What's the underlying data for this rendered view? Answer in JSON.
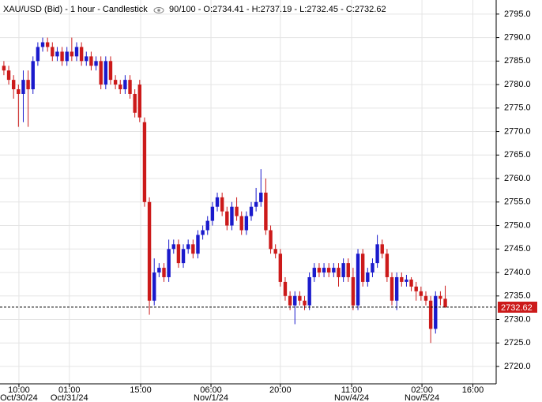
{
  "chart_data": {
    "type": "candlestick",
    "title": "XAU/USD (Bid) - 1 hour - Candlestick",
    "info": "90/100 - O:2734.41 - H:2737.19 - L:2732.45 - C:2732.62",
    "up_color": "#1a1acc",
    "down_color": "#cc1a1a",
    "grid": true,
    "xlim": [
      -0.8,
      101.5
    ],
    "xticks": [
      {
        "value": 3.1,
        "label": "10:00"
      },
      {
        "value": 13.5,
        "label": "01:00"
      },
      {
        "value": 28.2,
        "label": "15:00"
      },
      {
        "value": 42.7,
        "label": "06:00"
      },
      {
        "value": 57,
        "label": "20:00"
      },
      {
        "value": 71.7,
        "label": "11:00"
      },
      {
        "value": 86.2,
        "label": "02:00"
      },
      {
        "value": 96.7,
        "label": "16:00"
      }
    ],
    "xdates": [
      {
        "value": 3.1,
        "label": "Oct/30/24"
      },
      {
        "value": 13.5,
        "label": "Oct/31/24"
      },
      {
        "value": 42.7,
        "label": "Nov/1/24"
      },
      {
        "value": 71.7,
        "label": "Nov/4/24"
      },
      {
        "value": 86.2,
        "label": "Nov/5/24"
      }
    ],
    "ylim": [
      2716.3,
      2798
    ],
    "yticks": [
      {
        "value": 2720,
        "label": "2720.0"
      },
      {
        "value": 2725,
        "label": "2725.0"
      },
      {
        "value": 2730,
        "label": "2730.0"
      },
      {
        "value": 2735,
        "label": "2735.0"
      },
      {
        "value": 2740,
        "label": "2740.0"
      },
      {
        "value": 2745,
        "label": "2745.0"
      },
      {
        "value": 2750,
        "label": "2750.0"
      },
      {
        "value": 2755,
        "label": "2755.0"
      },
      {
        "value": 2760,
        "label": "2760.0"
      },
      {
        "value": 2765,
        "label": "2765.0"
      },
      {
        "value": 2770,
        "label": "2770.0"
      },
      {
        "value": 2775,
        "label": "2775.0"
      },
      {
        "value": 2780,
        "label": "2780.0"
      },
      {
        "value": 2785,
        "label": "2785.0"
      },
      {
        "value": 2790,
        "label": "2790.0"
      },
      {
        "value": 2795,
        "label": "2795.0"
      }
    ],
    "series": [
      {
        "open": [
          2784,
          2783,
          2781,
          2779,
          2778,
          2781,
          2779,
          2785,
          2788,
          2789,
          2788,
          2786,
          2787,
          2785,
          2787,
          2786,
          2788,
          2785,
          2786,
          2784,
          2785,
          2780,
          2785,
          2781,
          2780,
          2779,
          2781,
          2778,
          2780,
          2772,
          2755,
          2734,
          2740,
          2741,
          2739,
          2745,
          2746,
          2742,
          2745,
          2746,
          2744,
          2748,
          2749,
          2751,
          2754,
          2756,
          2753,
          2750,
          2754,
          2752,
          2749,
          2752,
          2754,
          2755,
          2757,
          2749,
          2745,
          2744,
          2738,
          2735,
          2733,
          2735,
          2734,
          2733,
          2739,
          2741,
          2740,
          2741,
          2740,
          2741,
          2739,
          2742,
          2739,
          2733,
          2744,
          2738,
          2740,
          2742,
          2746,
          2744,
          2739,
          2734,
          2739,
          2738,
          2738.5,
          2737,
          2736,
          2735,
          2734,
          2728,
          2735,
          2734.41
        ],
        "high": [
          2785,
          2784,
          2782,
          2780,
          2783,
          2783,
          2786,
          2789,
          2790,
          2790,
          2789,
          2788,
          2788,
          2788,
          2790,
          2789,
          2789,
          2787,
          2787,
          2786,
          2786,
          2786,
          2786,
          2782,
          2781,
          2782,
          2782,
          2779,
          2781,
          2773,
          2756,
          2743,
          2742,
          2742,
          2747,
          2747,
          2747,
          2746,
          2747,
          2747,
          2749,
          2750,
          2752,
          2755,
          2757,
          2757,
          2754,
          2755,
          2756,
          2753,
          2753,
          2755,
          2758,
          2762,
          2760,
          2750,
          2746,
          2745,
          2739,
          2736,
          2736,
          2736,
          2735,
          2740,
          2742,
          2742,
          2742,
          2742,
          2742,
          2742,
          2743,
          2743,
          2741,
          2745,
          2745,
          2741,
          2743,
          2748,
          2747,
          2745,
          2740,
          2740,
          2740,
          2739.5,
          2739,
          2738,
          2737,
          2736,
          2735,
          2736,
          2736,
          2737.19
        ],
        "low": [
          2782,
          2780,
          2777,
          2771,
          2772,
          2771,
          2778,
          2784,
          2787,
          2787,
          2785,
          2785,
          2784,
          2784,
          2785,
          2785,
          2784,
          2784,
          2783,
          2783,
          2779,
          2779,
          2780,
          2779,
          2778,
          2778,
          2777,
          2773,
          2772,
          2754,
          2731,
          2733,
          2739,
          2738,
          2738,
          2744,
          2741,
          2741,
          2744,
          2743,
          2743,
          2747,
          2748,
          2750,
          2753,
          2752,
          2749,
          2749,
          2751,
          2748,
          2748,
          2751,
          2753,
          2754,
          2748,
          2744,
          2743,
          2737,
          2734,
          2732,
          2729,
          2733,
          2732,
          2732,
          2738,
          2739,
          2739,
          2739,
          2739,
          2737,
          2738,
          2738,
          2732,
          2732,
          2737,
          2737,
          2739,
          2741,
          2743,
          2738,
          2733,
          2732,
          2737,
          2737,
          2736,
          2734,
          2734,
          2733,
          2725,
          2727,
          2733,
          2732.45
        ],
        "close": [
          2783,
          2781,
          2779,
          2778,
          2781,
          2779,
          2785,
          2788,
          2789,
          2788,
          2786,
          2787,
          2785,
          2787,
          2786,
          2788,
          2785,
          2786,
          2784,
          2785,
          2780,
          2785,
          2781,
          2780,
          2779,
          2781,
          2778,
          2774,
          2773,
          2755,
          2734,
          2740,
          2741,
          2739,
          2745,
          2746,
          2742,
          2745,
          2746,
          2744,
          2748,
          2749,
          2751,
          2754,
          2756,
          2753,
          2750,
          2754,
          2752,
          2749,
          2752,
          2754,
          2755,
          2757,
          2749,
          2745,
          2744,
          2738,
          2735,
          2733,
          2735,
          2734,
          2733,
          2739,
          2741,
          2740,
          2741,
          2740,
          2741,
          2739,
          2742,
          2739,
          2733,
          2744,
          2738,
          2740,
          2742,
          2746,
          2744,
          2739,
          2734,
          2739,
          2738,
          2738.5,
          2737,
          2736,
          2735,
          2734,
          2728,
          2735,
          2734.41,
          2732.62
        ]
      }
    ]
  }
}
